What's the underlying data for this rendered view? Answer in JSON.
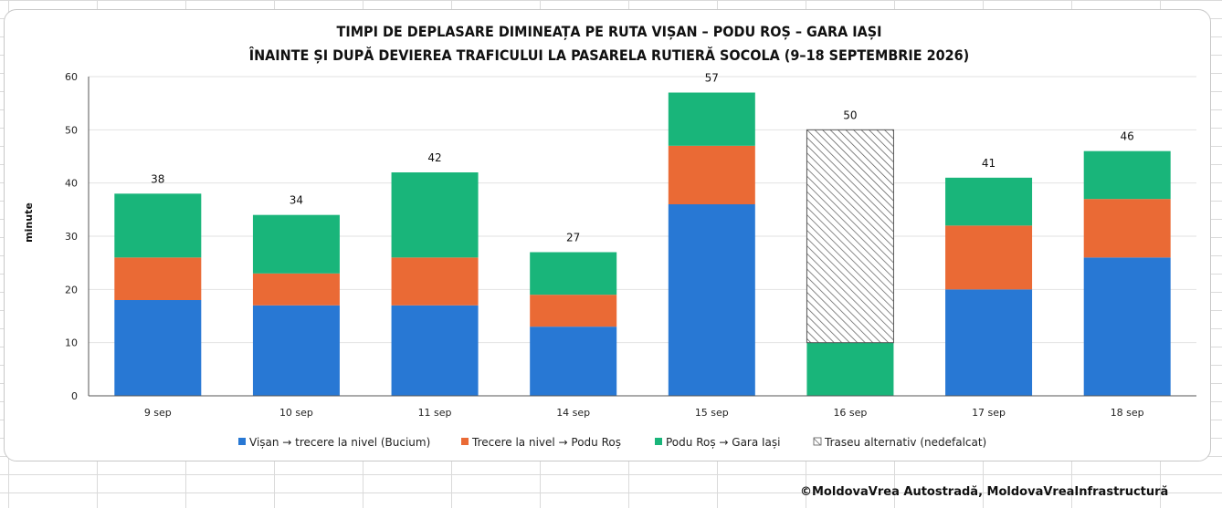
{
  "credit": "©MoldovaVrea Autostradă, MoldovaVreaInfrastructură",
  "colors": {
    "seg1": "#2878d4",
    "seg2": "#ea6a35",
    "seg3": "#19b57a",
    "alt_stroke": "#555555",
    "grid": "#e2e2e2",
    "axis": "#555555"
  },
  "chart_data": {
    "type": "bar",
    "stacked": true,
    "title": [
      "TIMPI DE DEPLASARE DIMINEAȚA PE RUTA VIȘAN – PODU ROȘ – GARA IAȘI",
      "ÎNAINTE ȘI DUPĂ DEVIEREA TRAFICULUI LA PASARELA RUTIERĂ SOCOLA (9–18 SEPTEMBRIE 2026)"
    ],
    "xlabel": "",
    "ylabel": "minute",
    "ylim": [
      0,
      60
    ],
    "yticks": [
      0,
      10,
      20,
      30,
      40,
      50,
      60
    ],
    "grid": true,
    "legend_position": "bottom",
    "categories": [
      "9 sep",
      "10 sep",
      "11 sep",
      "14 sep",
      "15 sep",
      "16 sep",
      "17 sep",
      "18 sep"
    ],
    "series": [
      {
        "name": "Vișan → trecere la nivel (Bucium)",
        "values": [
          18,
          17,
          17,
          13,
          36,
          null,
          20,
          26
        ]
      },
      {
        "name": "Trecere la nivel → Podu Roș",
        "values": [
          8,
          6,
          9,
          6,
          11,
          null,
          12,
          11
        ]
      },
      {
        "name": "Podu Roș → Gara Iași",
        "values": [
          12,
          11,
          16,
          8,
          10,
          10,
          9,
          9
        ]
      },
      {
        "name": "Traseu alternativ (nedefalcat)",
        "values": [
          null,
          null,
          null,
          null,
          null,
          40,
          null,
          null
        ]
      }
    ],
    "totals": [
      38,
      34,
      42,
      27,
      57,
      50,
      41,
      46
    ]
  }
}
